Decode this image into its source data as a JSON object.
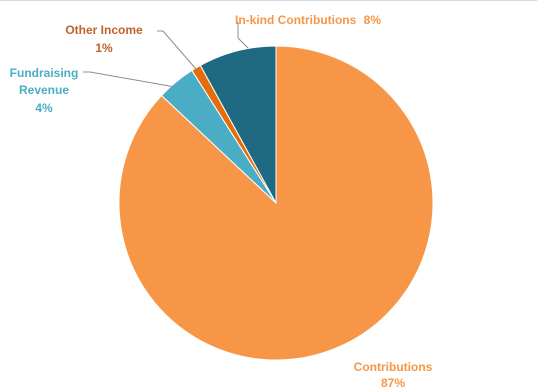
{
  "chart_data": {
    "type": "pie",
    "title": "",
    "slices": [
      {
        "label": "Contributions",
        "percent_label": "87%",
        "value": 87,
        "color": "#F79646",
        "label_color": "#F79646"
      },
      {
        "label": "Fundraising Revenue",
        "line1": "Fundraising",
        "line2": "Revenue",
        "percent_label": "4%",
        "value": 4,
        "color": "#4BACC6",
        "label_color": "#4BACC6"
      },
      {
        "label": "Other Income",
        "percent_label": "1%",
        "value": 1,
        "color": "#E46C0A",
        "label_color": "#C0622C"
      },
      {
        "label": "In-kind Contributions",
        "percent_label": "8%",
        "value": 8,
        "color": "#1F6A82",
        "label_color": "#F79646"
      }
    ]
  }
}
